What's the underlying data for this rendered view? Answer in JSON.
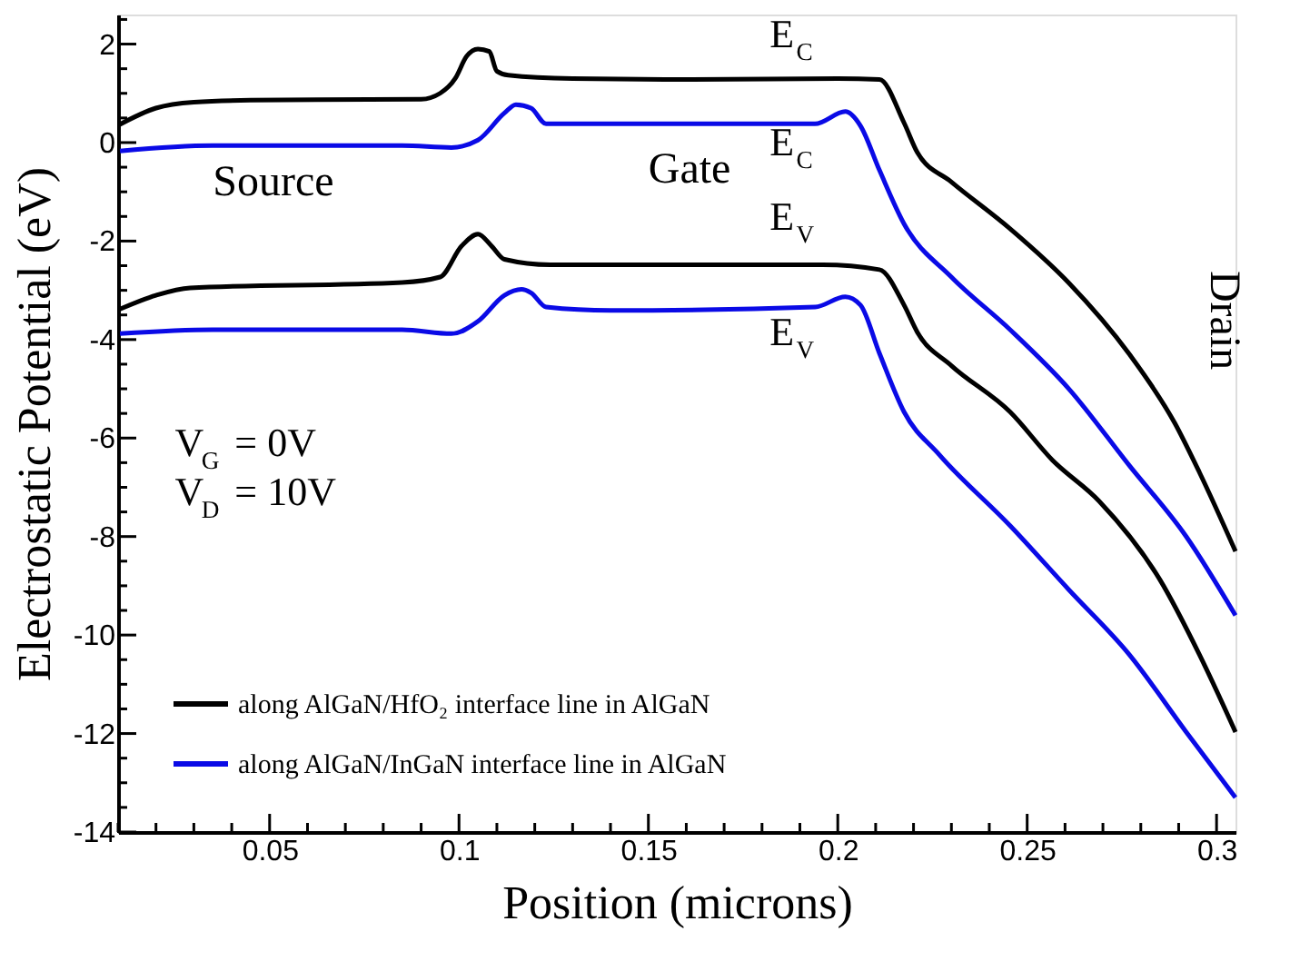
{
  "chart_data": {
    "type": "line",
    "xlabel": "Position (microns)",
    "ylabel": "Electrostatic Potential (eV)",
    "xlim": [
      0.01,
      0.305
    ],
    "ylim": [
      -14,
      2.6
    ],
    "xticks": [
      {
        "value": 0.01,
        "label": null
      },
      {
        "value": 0.02,
        "label": null
      },
      {
        "value": 0.03,
        "label": null
      },
      {
        "value": 0.04,
        "label": null
      },
      0.05,
      {
        "value": 0.06,
        "label": null
      },
      {
        "value": 0.07,
        "label": null
      },
      {
        "value": 0.08,
        "label": null
      },
      {
        "value": 0.09,
        "label": null
      },
      0.1,
      {
        "value": 0.11,
        "label": null
      },
      {
        "value": 0.12,
        "label": null
      },
      {
        "value": 0.13,
        "label": null
      },
      {
        "value": 0.14,
        "label": null
      },
      0.15,
      {
        "value": 0.16,
        "label": null
      },
      {
        "value": 0.17,
        "label": null
      },
      {
        "value": 0.18,
        "label": null
      },
      {
        "value": 0.19,
        "label": null
      },
      0.2,
      {
        "value": 0.21,
        "label": null
      },
      {
        "value": 0.22,
        "label": null
      },
      {
        "value": 0.23,
        "label": null
      },
      {
        "value": 0.24,
        "label": null
      },
      0.25,
      {
        "value": 0.26,
        "label": null
      },
      {
        "value": 0.27,
        "label": null
      },
      {
        "value": 0.28,
        "label": null
      },
      {
        "value": 0.29,
        "label": null
      },
      0.3
    ],
    "yticks": [
      -14,
      {
        "value": -13.5,
        "label": null
      },
      {
        "value": -13,
        "label": null
      },
      {
        "value": -12.5,
        "label": null
      },
      -12,
      {
        "value": -11.5,
        "label": null
      },
      {
        "value": -11,
        "label": null
      },
      {
        "value": -10.5,
        "label": null
      },
      -10,
      {
        "value": -9.5,
        "label": null
      },
      {
        "value": -9,
        "label": null
      },
      {
        "value": -8.5,
        "label": null
      },
      -8,
      {
        "value": -7.5,
        "label": null
      },
      {
        "value": -7,
        "label": null
      },
      {
        "value": -6.5,
        "label": null
      },
      -6,
      {
        "value": -5.5,
        "label": null
      },
      {
        "value": -5,
        "label": null
      },
      {
        "value": -4.5,
        "label": null
      },
      -4,
      {
        "value": -3.5,
        "label": null
      },
      {
        "value": -3,
        "label": null
      },
      {
        "value": -2.5,
        "label": null
      },
      -2,
      {
        "value": -1.5,
        "label": null
      },
      {
        "value": -1,
        "label": null
      },
      {
        "value": -0.5,
        "label": null
      },
      0,
      {
        "value": 0.5,
        "label": null
      },
      {
        "value": 1,
        "label": null
      },
      {
        "value": 1.5,
        "label": null
      },
      2,
      {
        "value": 2.5,
        "label": null
      }
    ],
    "grid": false,
    "legend": "bottom left",
    "line_style": "solid",
    "marker": "none",
    "series": [
      {
        "name": "along AlGaN/HfO₂ interface line in AlGaN",
        "color": "#000000",
        "x": [
          0.01,
          0.02,
          0.03,
          0.045,
          0.09,
          0.095,
          0.099,
          0.102,
          0.105,
          0.108,
          0.11,
          0.113,
          0.13,
          0.16,
          0.2,
          0.211,
          0.2175,
          0.221,
          0.23,
          0.2455,
          0.261,
          0.277,
          0.289,
          0.2955,
          0.305
        ],
        "values": [
          0.35,
          0.7,
          0.82,
          0.86,
          0.88,
          1.0,
          1.3,
          1.75,
          1.9,
          1.85,
          1.45,
          1.37,
          1.3,
          1.28,
          1.3,
          1.28,
          0.4,
          -0.2,
          -0.8,
          -1.75,
          -2.85,
          -4.3,
          -5.7,
          -6.7,
          -8.3
        ]
      },
      {
        "name": "along AlGaN/InGaN interface line in AlGaN",
        "color": "#0a0ae6",
        "x": [
          0.0105,
          0.035,
          0.085,
          0.098,
          0.105,
          0.112,
          0.115,
          0.119,
          0.123,
          0.194,
          0.202,
          0.206,
          0.211,
          0.2175,
          0.23,
          0.2455,
          0.261,
          0.277,
          0.292,
          0.305
        ],
        "values": [
          -0.17,
          -0.06,
          -0.06,
          -0.1,
          0.05,
          0.6,
          0.77,
          0.7,
          0.38,
          0.38,
          0.63,
          0.34,
          -0.56,
          -1.65,
          -2.73,
          -3.8,
          -5.0,
          -6.56,
          -8.0,
          -9.6
        ]
      },
      {
        "color": "#000000",
        "x": [
          0.0105,
          0.02,
          0.029,
          0.085,
          0.095,
          0.1007,
          0.105,
          0.1086,
          0.112,
          0.124,
          0.196,
          0.211,
          0.2175,
          0.221,
          0.23,
          0.2455,
          0.2567,
          0.269,
          0.285,
          0.2955,
          0.305
        ],
        "values": [
          -3.38,
          -3.1,
          -2.95,
          -2.84,
          -2.73,
          -2.1,
          -1.86,
          -2.1,
          -2.37,
          -2.48,
          -2.48,
          -2.58,
          -3.3,
          -3.85,
          -4.53,
          -5.47,
          -6.45,
          -7.28,
          -8.87,
          -10.4,
          -11.97
        ]
      },
      {
        "color": "#0a0ae6",
        "x": [
          0.0105,
          0.035,
          0.085,
          0.098,
          0.105,
          0.112,
          0.1165,
          0.119,
          0.123,
          0.14,
          0.194,
          0.202,
          0.206,
          0.211,
          0.2175,
          0.2268,
          0.2455,
          0.261,
          0.277,
          0.292,
          0.305
        ],
        "values": [
          -3.88,
          -3.8,
          -3.8,
          -3.88,
          -3.63,
          -3.1,
          -2.98,
          -3.05,
          -3.34,
          -3.41,
          -3.34,
          -3.13,
          -3.3,
          -4.28,
          -5.47,
          -6.34,
          -7.78,
          -9.08,
          -10.4,
          -11.97,
          -13.3
        ]
      }
    ],
    "annotations": [
      "E$_{C}$",
      "E$_{C}$",
      "E$_{V}$",
      "E$_{V}$",
      "Source",
      "Gate",
      "Drain",
      "V$_{G}$ = 0V",
      "V$_{D}$ = 10V"
    ]
  }
}
